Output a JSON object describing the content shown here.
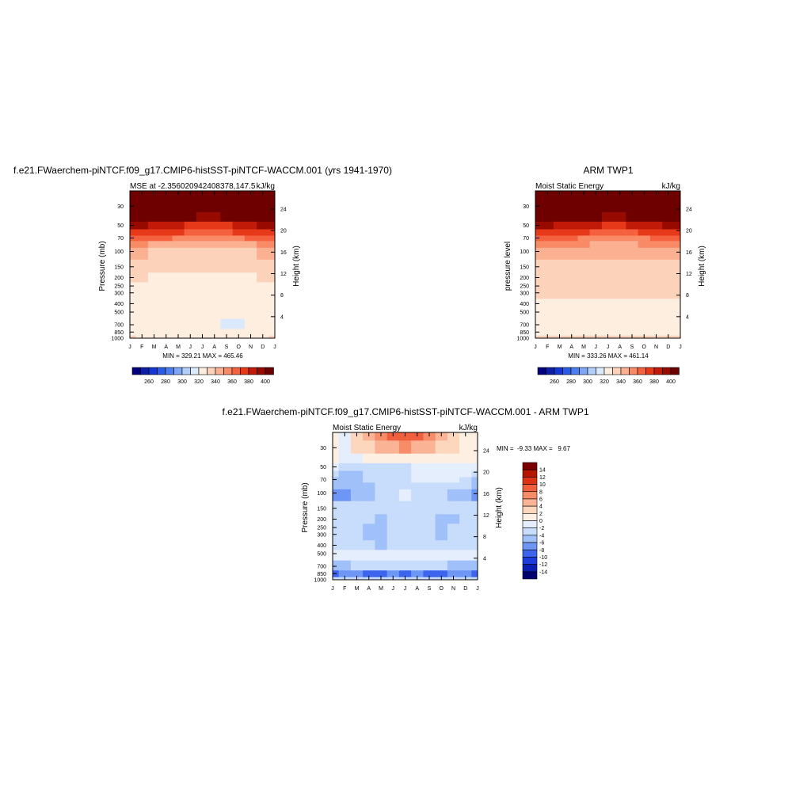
{
  "chart_data": [
    {
      "type": "heatmap",
      "id": "model",
      "title": "f.e21.FWaerchem-piNTCF.f09_g17.CMIP6-histSST-piNTCF-WACCM.001 (yrs 1941-1970)",
      "left_label": "MSE at -2.356020942408378,147.5",
      "right_label": "kJ/kg",
      "ylabel": "Pressure (mb)",
      "ylabel_right": "Height (km)",
      "x_ticks": [
        "J",
        "F",
        "M",
        "A",
        "M",
        "J",
        "J",
        "A",
        "S",
        "O",
        "N",
        "D",
        "J"
      ],
      "y_ticks": [
        1000,
        850,
        700,
        500,
        400,
        300,
        250,
        200,
        150,
        100,
        70,
        50,
        30
      ],
      "height_ticks": [
        4,
        8,
        12,
        16,
        20,
        24
      ],
      "ylim": [
        1000,
        20
      ],
      "stats": "MIN = 329.21 MAX = 465.46",
      "levels": [
        1000,
        850,
        700,
        500,
        300,
        250,
        200,
        150,
        100,
        80,
        70,
        60,
        50,
        40,
        30,
        20
      ],
      "profiles": {
        "1000": [
          340,
          336,
          336,
          336,
          336,
          336,
          336,
          336,
          336,
          336,
          336,
          336,
          340
        ],
        "850": [
          334,
          334,
          334,
          334,
          334,
          334,
          334,
          334,
          334,
          334,
          334,
          334,
          334
        ],
        "700": [
          334,
          334,
          334,
          334,
          334,
          334,
          334,
          334,
          328,
          328,
          334,
          334,
          334
        ],
        "500": [
          334,
          334,
          334,
          334,
          334,
          334,
          334,
          334,
          334,
          334,
          334,
          334,
          334
        ],
        "300": [
          334,
          334,
          334,
          334,
          334,
          334,
          334,
          334,
          334,
          334,
          334,
          334,
          334
        ],
        "250": [
          338,
          334,
          334,
          334,
          334,
          334,
          334,
          334,
          334,
          334,
          334,
          334,
          338
        ],
        "200": [
          345,
          345,
          338,
          338,
          338,
          336,
          336,
          336,
          336,
          338,
          338,
          345,
          345
        ],
        "150": [
          345,
          345,
          345,
          345,
          345,
          345,
          345,
          345,
          345,
          345,
          345,
          345,
          345
        ],
        "100": [
          352,
          352,
          349,
          349,
          349,
          348,
          348,
          348,
          349,
          349,
          349,
          352,
          352
        ],
        "80": [
          362,
          362,
          358,
          356,
          356,
          354,
          352,
          352,
          354,
          356,
          356,
          362,
          362
        ],
        "70": [
          375,
          375,
          372,
          370,
          368,
          366,
          362,
          362,
          364,
          366,
          370,
          375,
          375
        ],
        "60": [
          385,
          385,
          385,
          382,
          382,
          378,
          375,
          375,
          378,
          382,
          385,
          385,
          385
        ],
        "50": [
          400,
          400,
          395,
          392,
          390,
          388,
          385,
          385,
          388,
          392,
          395,
          400,
          400
        ],
        "40": [
          410,
          410,
          410,
          410,
          410,
          410,
          405,
          405,
          410,
          410,
          410,
          410,
          410
        ],
        "30": [
          420,
          420,
          420,
          420,
          420,
          420,
          420,
          420,
          420,
          420,
          420,
          420,
          420
        ],
        "20": [
          440,
          440,
          440,
          440,
          440,
          440,
          440,
          440,
          440,
          440,
          440,
          440,
          440
        ]
      }
    },
    {
      "type": "heatmap",
      "id": "obs",
      "title": "ARM TWP1",
      "left_label": "Moist Static Energy",
      "right_label": "kJ/kg",
      "ylabel": "pressure level",
      "ylabel_right": "Height (km)",
      "x_ticks": [
        "J",
        "F",
        "M",
        "A",
        "M",
        "J",
        "J",
        "A",
        "S",
        "O",
        "N",
        "D",
        "J"
      ],
      "y_ticks": [
        1000,
        850,
        700,
        500,
        400,
        300,
        250,
        200,
        150,
        100,
        70,
        50,
        30
      ],
      "height_ticks": [
        4,
        8,
        12,
        16,
        20,
        24
      ],
      "ylim": [
        1000,
        20
      ],
      "stats": "MIN = 333.26 MAX = 461.14",
      "levels": [
        1000,
        850,
        700,
        500,
        400,
        300,
        250,
        200,
        150,
        100,
        80,
        70,
        60,
        50,
        40,
        30,
        20
      ],
      "profiles": {
        "1000": [
          340,
          340,
          340,
          340,
          340,
          340,
          340,
          340,
          340,
          340,
          340,
          340,
          340
        ],
        "850": [
          334,
          334,
          336,
          334,
          334,
          334,
          334,
          334,
          334,
          334,
          334,
          334,
          334
        ],
        "700": [
          334,
          334,
          334,
          334,
          334,
          334,
          334,
          334,
          334,
          334,
          334,
          334,
          334
        ],
        "500": [
          334,
          334,
          334,
          334,
          334,
          334,
          334,
          334,
          334,
          334,
          334,
          334,
          334
        ],
        "400": [
          336,
          336,
          336,
          336,
          336,
          334,
          334,
          334,
          334,
          336,
          336,
          336,
          336
        ],
        "300": [
          345,
          345,
          345,
          345,
          345,
          345,
          345,
          345,
          345,
          345,
          345,
          345,
          345
        ],
        "250": [
          345,
          345,
          345,
          345,
          345,
          345,
          345,
          345,
          345,
          345,
          345,
          345,
          345
        ],
        "200": [
          345,
          345,
          345,
          345,
          345,
          345,
          345,
          345,
          345,
          345,
          345,
          345,
          345
        ],
        "150": [
          345,
          345,
          345,
          345,
          345,
          345,
          345,
          345,
          345,
          345,
          345,
          345,
          345
        ],
        "100": [
          352,
          352,
          352,
          352,
          352,
          352,
          352,
          352,
          352,
          352,
          352,
          352,
          352
        ],
        "80": [
          362,
          362,
          362,
          360,
          360,
          356,
          354,
          354,
          356,
          360,
          360,
          362,
          362
        ],
        "70": [
          375,
          375,
          372,
          370,
          368,
          366,
          364,
          364,
          366,
          368,
          372,
          375,
          375
        ],
        "60": [
          385,
          385,
          385,
          382,
          380,
          378,
          376,
          376,
          378,
          382,
          385,
          385,
          385
        ],
        "50": [
          400,
          400,
          398,
          395,
          392,
          390,
          388,
          388,
          390,
          395,
          398,
          400,
          400
        ],
        "40": [
          410,
          410,
          410,
          410,
          410,
          410,
          408,
          408,
          410,
          410,
          410,
          410,
          410
        ],
        "30": [
          420,
          420,
          420,
          420,
          420,
          420,
          420,
          420,
          420,
          420,
          420,
          420,
          420
        ],
        "20": [
          440,
          440,
          440,
          440,
          440,
          440,
          440,
          440,
          440,
          440,
          440,
          440,
          440
        ]
      }
    },
    {
      "type": "heatmap",
      "id": "diff",
      "title": "f.e21.FWaerchem-piNTCF.f09_g17.CMIP6-histSST-piNTCF-WACCM.001 - ARM TWP1",
      "left_label": "Moist Static Energy",
      "right_label": "kJ/kg",
      "ylabel": "Pressure (mb)",
      "ylabel_right": "Height (km)",
      "x_ticks": [
        "J",
        "F",
        "M",
        "A",
        "M",
        "J",
        "J",
        "A",
        "S",
        "O",
        "N",
        "D",
        "J"
      ],
      "y_ticks": [
        1000,
        850,
        700,
        500,
        400,
        300,
        250,
        200,
        150,
        100,
        70,
        50,
        30
      ],
      "height_ticks": [
        4,
        8,
        12,
        16,
        20,
        24
      ],
      "ylim": [
        1000,
        20
      ],
      "stats": "MIN =  -9.33 MAX =   9.67",
      "levels": [
        1000,
        850,
        700,
        500,
        400,
        300,
        250,
        200,
        150,
        100,
        80,
        70,
        60,
        50,
        40,
        30,
        20
      ],
      "profiles": {
        "1000": [
          -3,
          -3,
          -3,
          -3,
          -3,
          -3,
          -3,
          -3,
          -3,
          -3,
          -3,
          -3,
          -3
        ],
        "850": [
          -9,
          -7,
          -7,
          -9,
          -9,
          -7,
          -9,
          -7,
          -9,
          -9,
          -7,
          -7,
          -9
        ],
        "700": [
          -5,
          -5,
          -3,
          -3,
          -3,
          -3,
          -3,
          -3,
          -3,
          -3,
          -5,
          -5,
          -5
        ],
        "500": [
          -1,
          -1,
          -1,
          -1,
          -1,
          -1,
          -1,
          -1,
          -1,
          -1,
          -1,
          -1,
          -1
        ],
        "400": [
          -3,
          -3,
          -3,
          -3,
          -5,
          -3,
          -3,
          -3,
          -3,
          -3,
          -3,
          -3,
          -3
        ],
        "300": [
          -3,
          -3,
          -3,
          -5,
          -5,
          -3,
          -3,
          -3,
          -3,
          -5,
          -3,
          -3,
          -3
        ],
        "250": [
          -3,
          -3,
          -3,
          -5,
          -5,
          -3,
          -3,
          -3,
          -3,
          -5,
          -3,
          -3,
          -3
        ],
        "200": [
          -3,
          -3,
          -3,
          -3,
          -5,
          -3,
          -3,
          -3,
          -3,
          -5,
          -5,
          -3,
          -3
        ],
        "150": [
          -3,
          -3,
          -3,
          -3,
          -3,
          -3,
          -3,
          -3,
          -3,
          -3,
          -3,
          -3,
          -3
        ],
        "100": [
          -7,
          -7,
          -5,
          -5,
          -3,
          -3,
          -1,
          -3,
          -3,
          -3,
          -5,
          -5,
          -7
        ],
        "80": [
          -5,
          -5,
          -5,
          -5,
          -3,
          -3,
          -3,
          -3,
          -3,
          -3,
          -3,
          -3,
          -5
        ],
        "70": [
          -5,
          -5,
          -5,
          -3,
          -3,
          -3,
          -3,
          -1,
          -1,
          -1,
          -1,
          -3,
          -5
        ],
        "60": [
          -3,
          -5,
          -5,
          -3,
          -3,
          -3,
          -3,
          -1,
          -1,
          -1,
          -1,
          -1,
          -3
        ],
        "50": [
          -1,
          -3,
          -3,
          -3,
          -3,
          -3,
          -3,
          -1,
          -1,
          -1,
          -1,
          -1,
          -1
        ],
        "40": [
          1,
          -1,
          -1,
          1,
          1,
          1,
          1,
          1,
          1,
          1,
          1,
          1,
          1
        ],
        "30": [
          1,
          -1,
          3,
          3,
          5,
          5,
          7,
          5,
          5,
          3,
          3,
          1,
          1
        ],
        "20": [
          1,
          -1,
          3,
          5,
          7,
          9,
          9,
          9,
          7,
          5,
          3,
          1,
          1
        ]
      }
    }
  ],
  "colorbars": {
    "abs": {
      "colors": [
        "#000080",
        "#0d1fa8",
        "#1537d1",
        "#2a5be6",
        "#4a7ef0",
        "#7ea6f5",
        "#b3cdfa",
        "#dbe9fc",
        "#fdeee0",
        "#fcd2bb",
        "#fbb091",
        "#f98a66",
        "#f5613f",
        "#e6391a",
        "#c21a08",
        "#960a00",
        "#6e0000"
      ],
      "bounds": [
        250,
        260,
        270,
        280,
        290,
        300,
        310,
        320,
        330,
        340,
        350,
        360,
        370,
        380,
        390,
        400,
        410,
        480
      ],
      "labels": [
        "260",
        "280",
        "300",
        "320",
        "340",
        "360",
        "380",
        "400"
      ]
    },
    "diff": {
      "colors": [
        "#00006e",
        "#0a1eb4",
        "#1e3cdc",
        "#3c64ec",
        "#6e96f5",
        "#a0c0fa",
        "#c8dcfc",
        "#e4eefd",
        "#fdf0e2",
        "#fcd6bd",
        "#fab394",
        "#f78c68",
        "#f0603c",
        "#dc3314",
        "#b41400",
        "#7d0000"
      ],
      "bounds": [
        -16,
        -14,
        -12,
        -10,
        -8,
        -6,
        -4,
        -2,
        0,
        2,
        4,
        6,
        8,
        10,
        12,
        14,
        16
      ],
      "labels": [
        "-14",
        "-12",
        "-10",
        "-8",
        "-6",
        "-4",
        "-2",
        "0",
        "2",
        "4",
        "6",
        "8",
        "10",
        "12",
        "14"
      ]
    }
  }
}
